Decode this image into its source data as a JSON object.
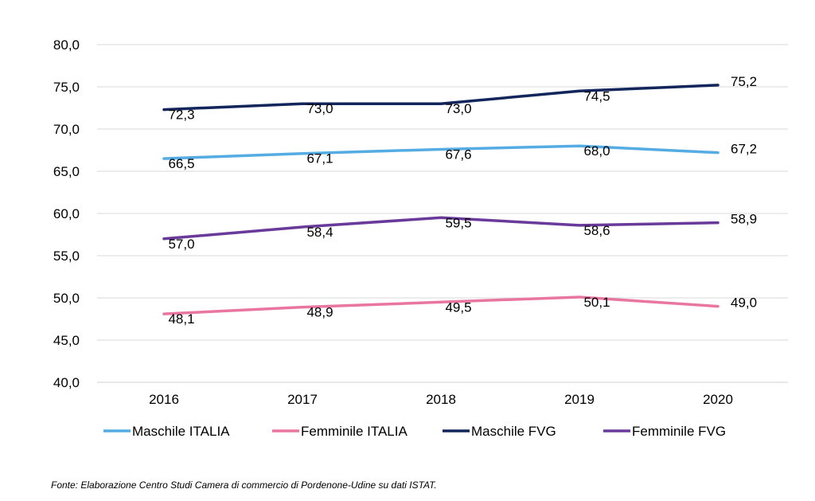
{
  "chart_data": {
    "type": "line",
    "categories": [
      "2016",
      "2017",
      "2018",
      "2019",
      "2020"
    ],
    "ylim": [
      40,
      80
    ],
    "yticks": [
      "40,0",
      "45,0",
      "50,0",
      "55,0",
      "60,0",
      "65,0",
      "70,0",
      "75,0",
      "80,0"
    ],
    "grid": "horizontal",
    "legend_position": "bottom",
    "series": [
      {
        "name": "Maschile ITALIA",
        "color": "#55ACE3",
        "values": [
          66.5,
          67.1,
          67.6,
          68.0,
          67.2
        ],
        "labels": [
          "66,5",
          "67,1",
          "67,6",
          "68,0",
          "67,2"
        ]
      },
      {
        "name": "Femminile ITALIA",
        "color": "#E8769F",
        "values": [
          48.1,
          48.9,
          49.5,
          50.1,
          49.0
        ],
        "labels": [
          "48,1",
          "48,9",
          "49,5",
          "50,1",
          "49,0"
        ]
      },
      {
        "name": "Maschile FVG",
        "color": "#13265C",
        "values": [
          72.3,
          73.0,
          73.0,
          74.5,
          75.2
        ],
        "labels": [
          "72,3",
          "73,0",
          "73,0",
          "74,5",
          "75,2"
        ]
      },
      {
        "name": "Femminile FVG",
        "color": "#6A3A9A",
        "values": [
          57.0,
          58.4,
          59.5,
          58.6,
          58.9
        ],
        "labels": [
          "57,0",
          "58,4",
          "59,5",
          "58,6",
          "58,9"
        ]
      }
    ]
  },
  "source_note": "Fonte: Elaborazione Centro Studi Camera di commercio di Pordenone-Udine su dati ISTAT."
}
